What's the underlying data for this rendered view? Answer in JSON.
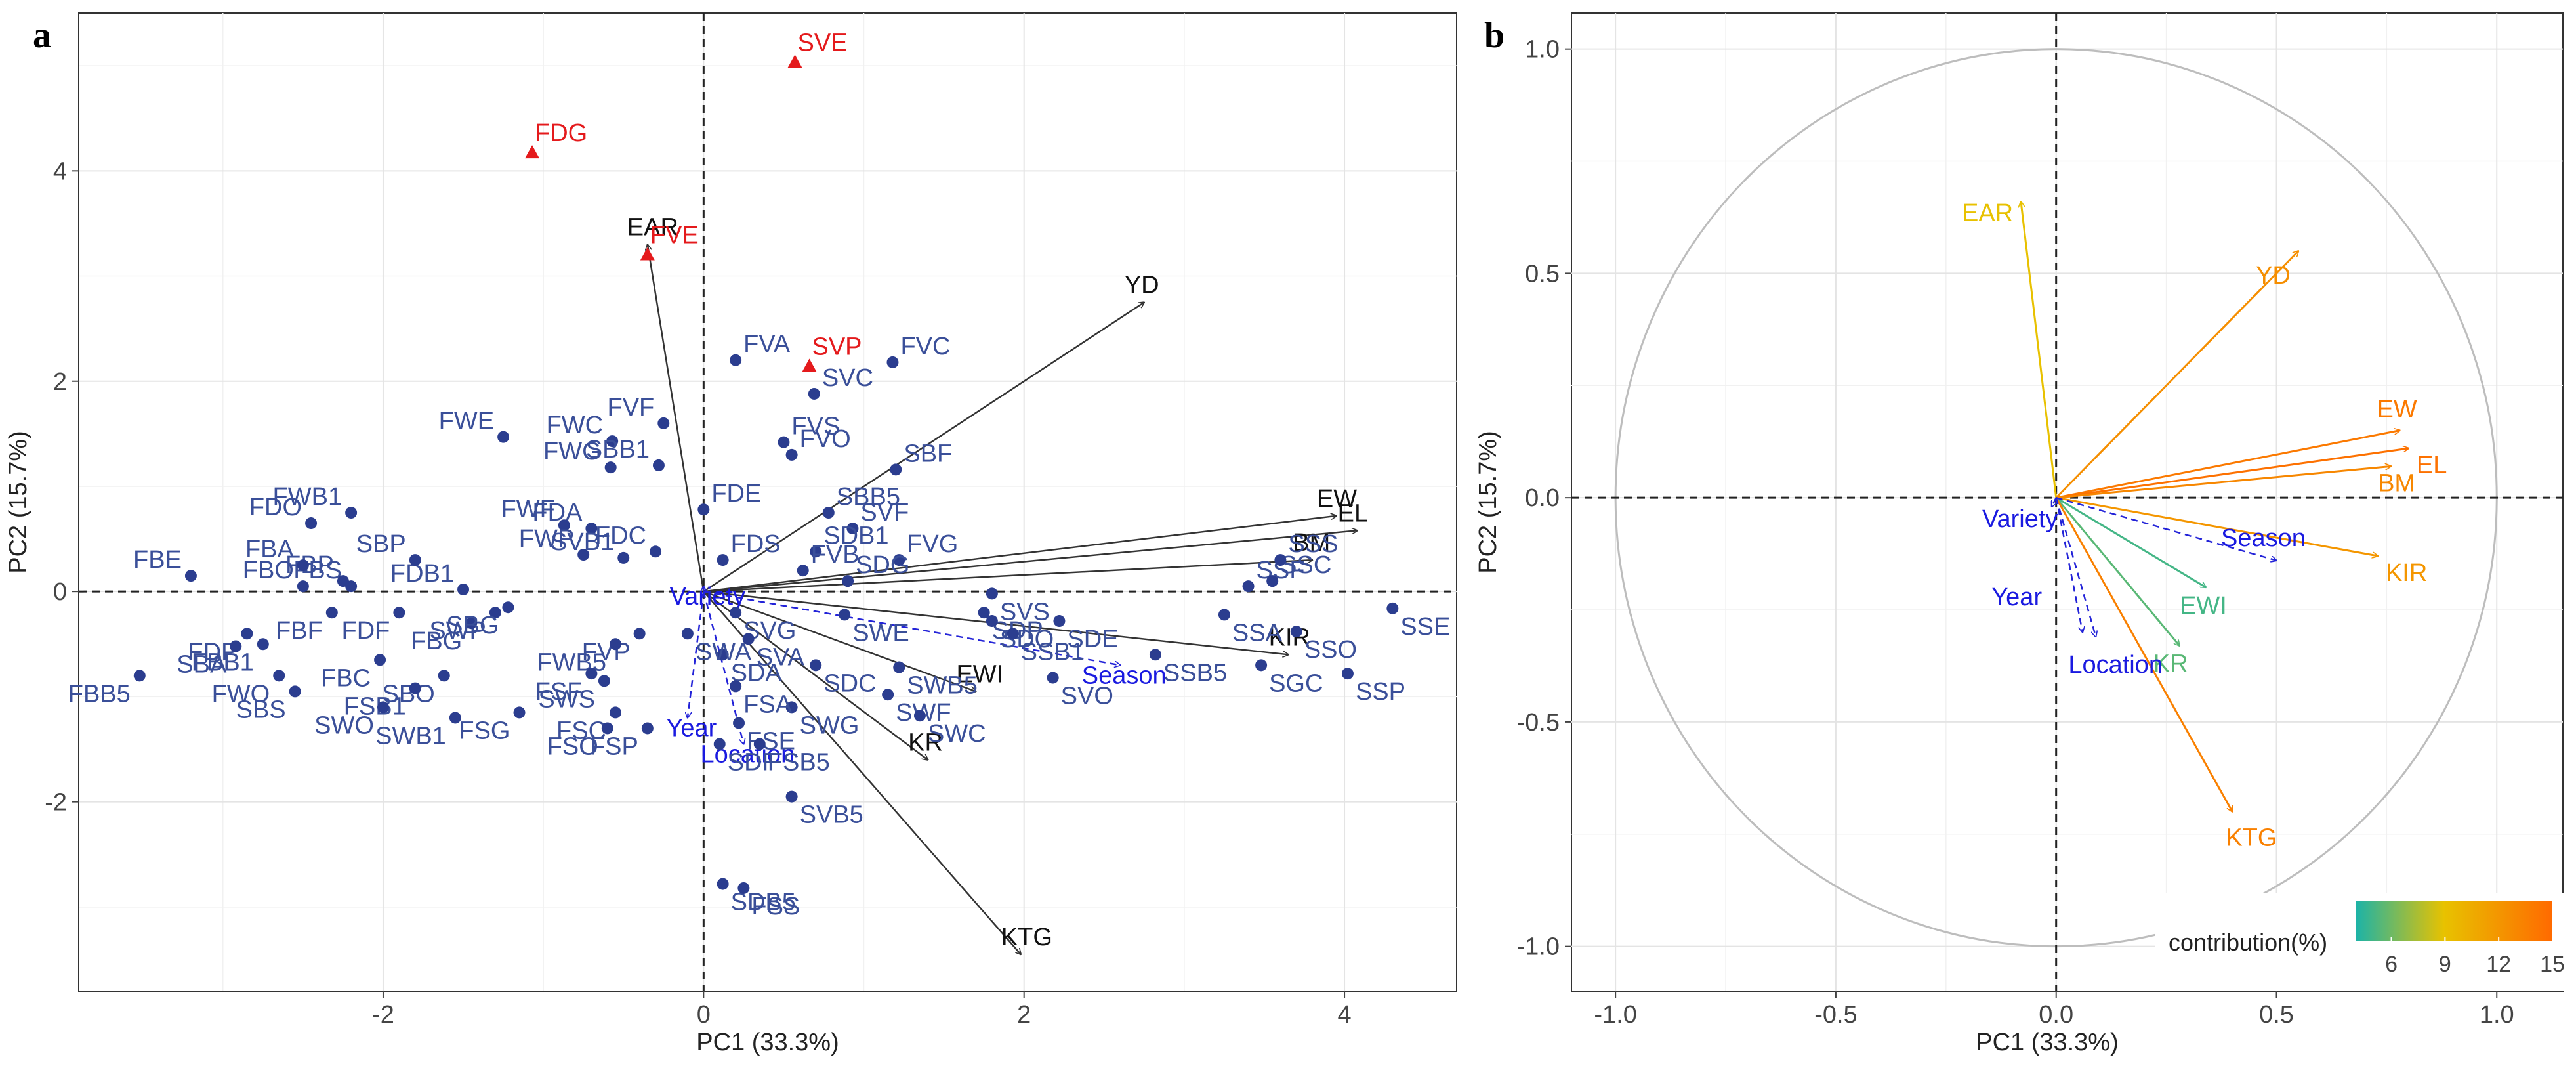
{
  "chart_data": [
    {
      "panel": "a",
      "type": "scatter",
      "title": "",
      "xlabel": "PC1 (33.3%)",
      "ylabel": "PC2 (15.7%)",
      "xlim": [
        -3.9,
        4.7
      ],
      "ylim": [
        -3.8,
        5.5
      ],
      "xticks": [
        -2,
        0,
        2,
        4
      ],
      "yticks": [
        -2,
        0,
        2,
        4
      ],
      "grid": true,
      "points": [
        {
          "label": "SVE",
          "x": 0.57,
          "y": 5.03,
          "group": "highlight"
        },
        {
          "label": "FDG",
          "x": -1.07,
          "y": 4.17,
          "group": "highlight"
        },
        {
          "label": "FVE",
          "x": -0.35,
          "y": 3.2,
          "group": "highlight"
        },
        {
          "label": "SVP",
          "x": 0.66,
          "y": 2.14,
          "group": "highlight"
        },
        {
          "label": "FVC",
          "x": 1.18,
          "y": 2.18,
          "group": "normal"
        },
        {
          "label": "FVA",
          "x": 0.2,
          "y": 2.2,
          "group": "normal"
        },
        {
          "label": "SVC",
          "x": 0.69,
          "y": 1.88,
          "group": "normal"
        },
        {
          "label": "FVS",
          "x": 0.5,
          "y": 1.42,
          "group": "normal"
        },
        {
          "label": "FVO",
          "x": 0.55,
          "y": 1.3,
          "group": "normal"
        },
        {
          "label": "SBF",
          "x": 1.2,
          "y": 1.16,
          "group": "normal"
        },
        {
          "label": "FVF",
          "x": -0.25,
          "y": 1.6,
          "group": "normal"
        },
        {
          "label": "FWC",
          "x": -0.57,
          "y": 1.43,
          "group": "normal"
        },
        {
          "label": "FWG",
          "x": -0.58,
          "y": 1.18,
          "group": "normal"
        },
        {
          "label": "SBB1",
          "x": -0.28,
          "y": 1.2,
          "group": "normal"
        },
        {
          "label": "FWE",
          "x": -1.25,
          "y": 1.47,
          "group": "normal"
        },
        {
          "label": "FDE",
          "x": 0.0,
          "y": 0.78,
          "group": "normal"
        },
        {
          "label": "FDA",
          "x": -0.7,
          "y": 0.6,
          "group": "normal"
        },
        {
          "label": "FWF",
          "x": -0.87,
          "y": 0.63,
          "group": "normal"
        },
        {
          "label": "FWP",
          "x": -0.75,
          "y": 0.35,
          "group": "normal"
        },
        {
          "label": "SBB5",
          "x": 0.78,
          "y": 0.75,
          "group": "normal"
        },
        {
          "label": "SVF",
          "x": 0.93,
          "y": 0.6,
          "group": "normal"
        },
        {
          "label": "SDB1",
          "x": 0.7,
          "y": 0.38,
          "group": "normal"
        },
        {
          "label": "FVG",
          "x": 1.22,
          "y": 0.3,
          "group": "normal"
        },
        {
          "label": "FDC",
          "x": -0.3,
          "y": 0.38,
          "group": "normal"
        },
        {
          "label": "FDS",
          "x": 0.12,
          "y": 0.3,
          "group": "normal"
        },
        {
          "label": "SVB1",
          "x": -0.5,
          "y": 0.32,
          "group": "normal"
        },
        {
          "label": "FVB",
          "x": 0.62,
          "y": 0.2,
          "group": "normal"
        },
        {
          "label": "SDG",
          "x": 0.9,
          "y": 0.1,
          "group": "normal"
        },
        {
          "label": "SVS",
          "x": 1.8,
          "y": -0.02,
          "group": "normal"
        },
        {
          "label": "SDP",
          "x": 1.75,
          "y": -0.2,
          "group": "normal"
        },
        {
          "label": "SDE",
          "x": 2.22,
          "y": -0.28,
          "group": "normal"
        },
        {
          "label": "SSF",
          "x": 3.4,
          "y": 0.05,
          "group": "normal"
        },
        {
          "label": "SSC",
          "x": 3.55,
          "y": 0.1,
          "group": "normal"
        },
        {
          "label": "SSS",
          "x": 3.6,
          "y": 0.3,
          "group": "normal"
        },
        {
          "label": "SSE",
          "x": 4.3,
          "y": -0.16,
          "group": "normal"
        },
        {
          "label": "SSA",
          "x": 3.25,
          "y": -0.22,
          "group": "normal"
        },
        {
          "label": "SSO",
          "x": 3.7,
          "y": -0.38,
          "group": "normal"
        },
        {
          "label": "SSP",
          "x": 4.02,
          "y": -0.78,
          "group": "normal"
        },
        {
          "label": "SSB5",
          "x": 2.82,
          "y": -0.6,
          "group": "normal"
        },
        {
          "label": "SGC",
          "x": 3.48,
          "y": -0.7,
          "group": "normal"
        },
        {
          "label": "SDO",
          "x": 1.8,
          "y": -0.28,
          "group": "normal"
        },
        {
          "label": "SSB1",
          "x": 1.93,
          "y": -0.4,
          "group": "normal"
        },
        {
          "label": "SVO",
          "x": 2.18,
          "y": -0.82,
          "group": "normal"
        },
        {
          "label": "SWE",
          "x": 0.88,
          "y": -0.22,
          "group": "normal"
        },
        {
          "label": "SVG",
          "x": 0.2,
          "y": -0.2,
          "group": "normal"
        },
        {
          "label": "SVA",
          "x": 0.28,
          "y": -0.45,
          "group": "normal"
        },
        {
          "label": "SWB5",
          "x": 1.22,
          "y": -0.72,
          "group": "normal"
        },
        {
          "label": "SDC",
          "x": 0.7,
          "y": -0.7,
          "group": "normal"
        },
        {
          "label": "SWF",
          "x": 1.15,
          "y": -0.98,
          "group": "normal"
        },
        {
          "label": "SWG",
          "x": 0.55,
          "y": -1.1,
          "group": "normal"
        },
        {
          "label": "SWC",
          "x": 1.35,
          "y": -1.18,
          "group": "normal"
        },
        {
          "label": "SDA",
          "x": 0.12,
          "y": -0.6,
          "group": "normal"
        },
        {
          "label": "FSA",
          "x": 0.2,
          "y": -0.9,
          "group": "normal"
        },
        {
          "label": "FSE",
          "x": 0.22,
          "y": -1.25,
          "group": "normal"
        },
        {
          "label": "FSB5",
          "x": 0.35,
          "y": -1.45,
          "group": "normal"
        },
        {
          "label": "SDB5",
          "x": 0.12,
          "y": -2.78,
          "group": "normal"
        },
        {
          "label": "FSS",
          "x": 0.25,
          "y": -2.82,
          "group": "normal"
        },
        {
          "label": "SVB5",
          "x": 0.55,
          "y": -1.95,
          "group": "normal"
        },
        {
          "label": "SDF",
          "x": 0.1,
          "y": -1.45,
          "group": "normal"
        },
        {
          "label": "SWA",
          "x": -0.1,
          "y": -0.4,
          "group": "normal"
        },
        {
          "label": "FVP",
          "x": -0.4,
          "y": -0.4,
          "group": "normal"
        },
        {
          "label": "FWB5",
          "x": -0.55,
          "y": -0.5,
          "group": "normal"
        },
        {
          "label": "SWS",
          "x": -0.62,
          "y": -0.85,
          "group": "normal"
        },
        {
          "label": "FSF",
          "x": -0.7,
          "y": -0.78,
          "group": "normal"
        },
        {
          "label": "FSC",
          "x": -0.55,
          "y": -1.15,
          "group": "normal"
        },
        {
          "label": "FSO",
          "x": -0.6,
          "y": -1.3,
          "group": "normal"
        },
        {
          "label": "FSP",
          "x": -0.35,
          "y": -1.3,
          "group": "normal"
        },
        {
          "label": "FSG",
          "x": -1.15,
          "y": -1.15,
          "group": "normal"
        },
        {
          "label": "SWP",
          "x": -1.3,
          "y": -0.2,
          "group": "normal"
        },
        {
          "label": "FDB1",
          "x": -1.5,
          "y": 0.02,
          "group": "normal"
        },
        {
          "label": "SBP",
          "x": -1.8,
          "y": 0.3,
          "group": "normal"
        },
        {
          "label": "FBG",
          "x": -1.45,
          "y": -0.3,
          "group": "normal"
        },
        {
          "label": "SBG",
          "x": -1.22,
          "y": -0.15,
          "group": "normal"
        },
        {
          "label": "FDF",
          "x": -1.9,
          "y": -0.2,
          "group": "normal"
        },
        {
          "label": "SBO",
          "x": -1.62,
          "y": -0.8,
          "group": "normal"
        },
        {
          "label": "FBC",
          "x": -2.02,
          "y": -0.65,
          "group": "normal"
        },
        {
          "label": "FSB1",
          "x": -1.8,
          "y": -0.92,
          "group": "normal"
        },
        {
          "label": "SWB1",
          "x": -1.55,
          "y": -1.2,
          "group": "normal"
        },
        {
          "label": "SWO",
          "x": -2.0,
          "y": -1.1,
          "group": "normal"
        },
        {
          "label": "FBS",
          "x": -2.2,
          "y": 0.05,
          "group": "normal"
        },
        {
          "label": "FBP",
          "x": -2.25,
          "y": 0.1,
          "group": "normal"
        },
        {
          "label": "FWB1",
          "x": -2.2,
          "y": 0.75,
          "group": "normal"
        },
        {
          "label": "FDO",
          "x": -2.45,
          "y": 0.65,
          "group": "normal"
        },
        {
          "label": "FBA",
          "x": -2.5,
          "y": 0.25,
          "group": "normal"
        },
        {
          "label": "FBE",
          "x": -3.2,
          "y": 0.15,
          "group": "normal"
        },
        {
          "label": "FBO",
          "x": -2.5,
          "y": 0.05,
          "group": "normal"
        },
        {
          "label": "FBF",
          "x": -2.32,
          "y": -0.2,
          "group": "normal"
        },
        {
          "label": "FDP",
          "x": -2.85,
          "y": -0.4,
          "group": "normal"
        },
        {
          "label": "FBB1",
          "x": -2.75,
          "y": -0.5,
          "group": "normal"
        },
        {
          "label": "SBA",
          "x": -2.92,
          "y": -0.52,
          "group": "normal"
        },
        {
          "label": "FBB5",
          "x": -3.52,
          "y": -0.8,
          "group": "normal"
        },
        {
          "label": "FWO",
          "x": -2.65,
          "y": -0.8,
          "group": "normal"
        },
        {
          "label": "SBS",
          "x": -2.55,
          "y": -0.95,
          "group": "normal"
        }
      ],
      "vectors": [
        {
          "label": "EAR",
          "x": -0.35,
          "y": 3.3
        },
        {
          "label": "YD",
          "x": 2.75,
          "y": 2.75
        },
        {
          "label": "EW",
          "x": 3.95,
          "y": 0.72
        },
        {
          "label": "EL",
          "x": 4.08,
          "y": 0.58
        },
        {
          "label": "BM",
          "x": 3.8,
          "y": 0.3
        },
        {
          "label": "KIR",
          "x": 3.65,
          "y": -0.6
        },
        {
          "label": "EWI",
          "x": 1.7,
          "y": -0.95
        },
        {
          "label": "KR",
          "x": 1.4,
          "y": -1.6
        },
        {
          "label": "KTG",
          "x": 1.98,
          "y": -3.45
        }
      ],
      "qualitative_vectors": [
        {
          "label": "Variety",
          "x": 0.0,
          "y": 0.05
        },
        {
          "label": "Season",
          "x": 2.6,
          "y": -0.7
        },
        {
          "label": "Year",
          "x": -0.1,
          "y": -1.2
        },
        {
          "label": "Location",
          "x": 0.25,
          "y": -1.45
        }
      ]
    },
    {
      "panel": "b",
      "type": "scatter",
      "subtype": "correlation-circle",
      "title": "",
      "xlabel": "PC1 (33.3%)",
      "ylabel": "PC2 (15.7%)",
      "xlim": [
        -1.1,
        1.15
      ],
      "ylim": [
        -1.1,
        1.08
      ],
      "xticks": [
        -1.0,
        -0.5,
        0.0,
        0.5,
        1.0
      ],
      "yticks": [
        -1.0,
        -0.5,
        0.0,
        0.5,
        1.0
      ],
      "grid": true,
      "legend": {
        "title": "contribution(%)",
        "ticks": [
          6,
          9,
          12,
          15
        ],
        "range": [
          4,
          15
        ],
        "position": "bottom-right"
      },
      "vectors": [
        {
          "label": "EAR",
          "x": -0.08,
          "y": 0.66,
          "contribution": 9.0
        },
        {
          "label": "YD",
          "x": 0.55,
          "y": 0.55,
          "contribution": 12.5
        },
        {
          "label": "EW",
          "x": 0.78,
          "y": 0.15,
          "contribution": 14.0
        },
        {
          "label": "EL",
          "x": 0.8,
          "y": 0.11,
          "contribution": 14.5
        },
        {
          "label": "BM",
          "x": 0.76,
          "y": 0.07,
          "contribution": 13.0
        },
        {
          "label": "KIR",
          "x": 0.73,
          "y": -0.13,
          "contribution": 12.0
        },
        {
          "label": "EWI",
          "x": 0.34,
          "y": -0.2,
          "contribution": 5.0
        },
        {
          "label": "KR",
          "x": 0.28,
          "y": -0.33,
          "contribution": 5.5
        },
        {
          "label": "KTG",
          "x": 0.4,
          "y": -0.7,
          "contribution": 13.5
        }
      ],
      "qualitative_vectors": [
        {
          "label": "Variety",
          "x": -0.01,
          "y": -0.02
        },
        {
          "label": "Season",
          "x": 0.5,
          "y": -0.14
        },
        {
          "label": "Year",
          "x": 0.06,
          "y": -0.3
        },
        {
          "label": "Location",
          "x": 0.09,
          "y": -0.31
        }
      ]
    }
  ],
  "panel_letters": {
    "a": "a",
    "b": "b"
  }
}
